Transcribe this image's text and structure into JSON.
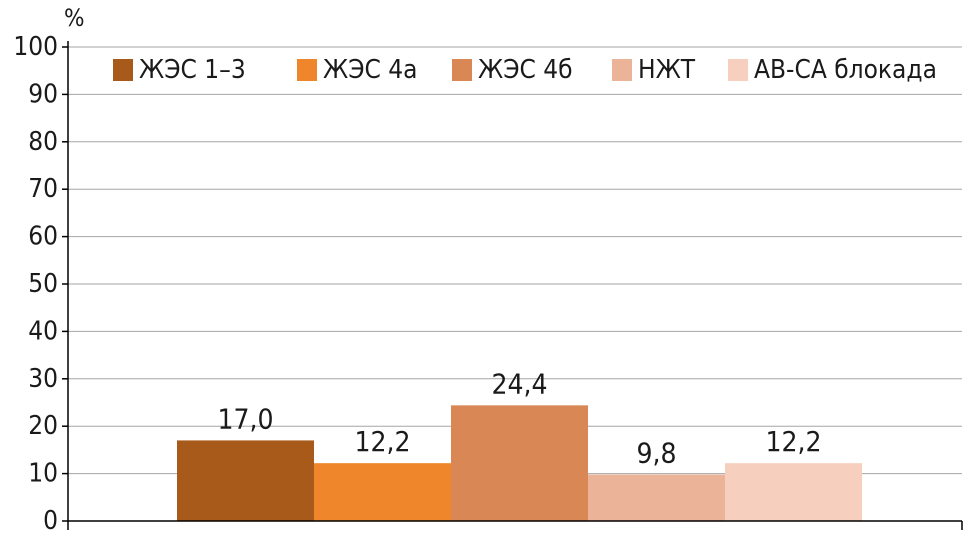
{
  "chart_data": {
    "type": "bar",
    "unit_label": "%",
    "categories": [
      "ЖЭС 1–3",
      "ЖЭС 4а",
      "ЖЭС 4б",
      "НЖТ",
      "АВ-СА блокада"
    ],
    "values": [
      17.0,
      12.2,
      24.4,
      9.8,
      12.2
    ],
    "value_labels": [
      "17,0",
      "12,2",
      "24,4",
      "9,8",
      "12,2"
    ],
    "colors": [
      "#a85a1b",
      "#f0862c",
      "#d98755",
      "#ebb397",
      "#f7cfbe"
    ],
    "ylim": [
      0,
      100
    ],
    "yticks": [
      "0",
      "10",
      "20",
      "30",
      "40",
      "50",
      "60",
      "70",
      "80",
      "90",
      "100"
    ],
    "grid": true,
    "legend": "top-right",
    "title": "",
    "xlabel": "",
    "ylabel": ""
  }
}
